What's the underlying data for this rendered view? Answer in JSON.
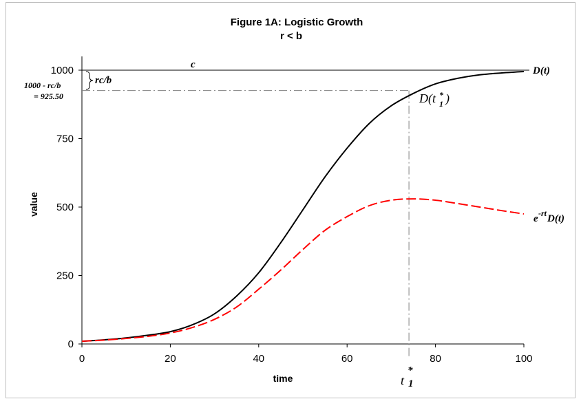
{
  "chart_data": {
    "type": "line",
    "title": "Figure 1A: Logistic Growth",
    "subtitle": "r < b",
    "xlabel": "time",
    "ylabel": "value",
    "xlim": [
      0,
      100
    ],
    "ylim": [
      0,
      1000
    ],
    "x_ticks": [
      "0",
      "20",
      "40",
      "60",
      "80",
      "100"
    ],
    "y_ticks": [
      "0",
      "250",
      "500",
      "750",
      "1000"
    ],
    "grid": false,
    "legend": "none",
    "series": [
      {
        "name": "D(t)",
        "color": "#000000",
        "style": "solid",
        "x": [
          0,
          5,
          10,
          15,
          20,
          25,
          30,
          35,
          40,
          45,
          50,
          55,
          60,
          65,
          70,
          75,
          80,
          85,
          90,
          95,
          100
        ],
        "y": [
          10,
          15,
          22,
          32,
          45,
          70,
          110,
          175,
          260,
          370,
          490,
          610,
          715,
          805,
          870,
          915,
          950,
          970,
          983,
          990,
          995
        ]
      },
      {
        "name": "e-rtD(t)",
        "color": "#ff0000",
        "style": "dashed",
        "x": [
          0,
          5,
          10,
          15,
          20,
          25,
          30,
          35,
          40,
          45,
          50,
          55,
          60,
          65,
          70,
          75,
          80,
          85,
          90,
          95,
          100
        ],
        "y": [
          10,
          14,
          20,
          28,
          40,
          60,
          90,
          135,
          200,
          270,
          345,
          415,
          465,
          505,
          525,
          530,
          525,
          513,
          500,
          487,
          475
        ]
      }
    ],
    "reference_lines": [
      {
        "orientation": "horizontal",
        "y": 1000,
        "style": "solid",
        "color": "#000000"
      },
      {
        "orientation": "horizontal",
        "y": 925.5,
        "style": "dashdot",
        "color": "#808080"
      },
      {
        "orientation": "vertical",
        "x": 74,
        "style": "dashdot",
        "color": "#808080"
      }
    ],
    "annotations": {
      "c": "c",
      "rcb": "rc/b",
      "level_line1": "1000 - rc/b",
      "level_line2": "= 925.50",
      "d_end_label": "D(t)",
      "dt1_label_main": "D(t",
      "dt1_sub": "1",
      "dt1_sup": "*",
      "dt1_close": ")",
      "disc_label_e": "e",
      "disc_label_sup": "-rt",
      "disc_label_rest": "D(t)",
      "t1_main": "t",
      "t1_sub": "1",
      "t1_sup": "*"
    }
  }
}
